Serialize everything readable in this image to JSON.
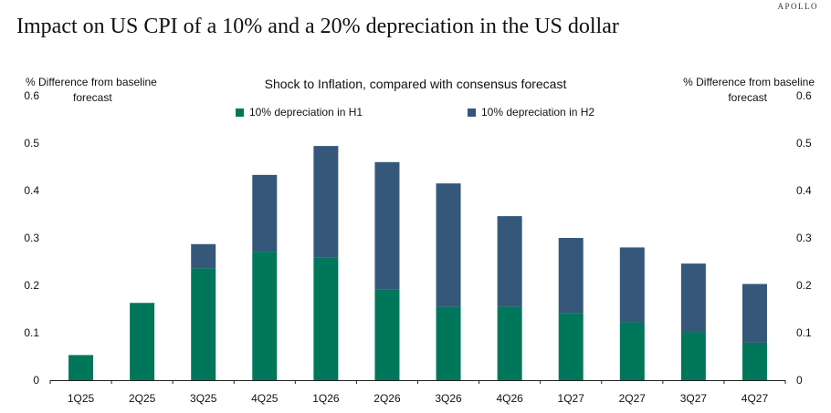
{
  "brand": "APOLLO",
  "title": "Impact on US CPI of a 10% and a 20% depreciation in the US dollar",
  "chart_data": {
    "type": "bar",
    "stacked": true,
    "title": "Shock to Inflation, compared with consensus forecast",
    "ylabel_left": [
      "% Difference from baseline",
      "forecast"
    ],
    "ylabel_right": [
      "% Difference from baseline",
      "forecast"
    ],
    "ylim": [
      0,
      0.6
    ],
    "yticks": [
      "0",
      "0.1",
      "0.2",
      "0.3",
      "0.4",
      "0.5",
      "0.6"
    ],
    "categories": [
      "1Q25",
      "2Q25",
      "3Q25",
      "4Q25",
      "1Q26",
      "2Q26",
      "3Q26",
      "4Q26",
      "1Q27",
      "2Q27",
      "3Q27",
      "4Q27"
    ],
    "series": [
      {
        "name": "10% depreciation in H1",
        "color": "#00775a",
        "values": [
          0.053,
          0.163,
          0.236,
          0.271,
          0.259,
          0.191,
          0.155,
          0.155,
          0.142,
          0.122,
          0.101,
          0.079
        ]
      },
      {
        "name": "10% depreciation in H2",
        "color": "#35587a",
        "values": [
          0,
          0,
          0.051,
          0.162,
          0.235,
          0.269,
          0.26,
          0.191,
          0.158,
          0.158,
          0.145,
          0.124
        ]
      }
    ],
    "legend_position": "top-center",
    "grid": false
  }
}
